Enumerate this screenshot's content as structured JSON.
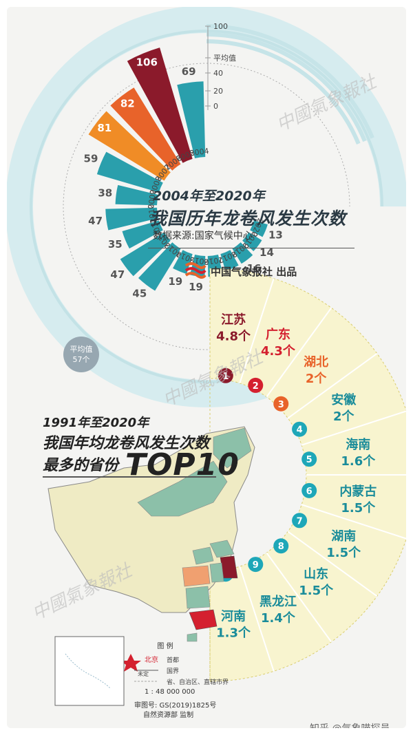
{
  "chart_data": [
    {
      "type": "bar",
      "title": "2004年至2020年 我国历年龙卷风发生次数",
      "subtitle": "数据来源:国家气候中心",
      "categories": [
        "2004",
        "2005",
        "2006",
        "2007",
        "2008",
        "2009",
        "2010",
        "2011",
        "2012",
        "2013",
        "2014",
        "2015",
        "2016",
        "2017",
        "2018",
        "2019",
        "2020"
      ],
      "values": [
        69,
        106,
        82,
        81,
        59,
        38,
        47,
        35,
        47,
        45,
        19,
        19,
        19,
        16,
        16,
        14,
        13
      ],
      "highlight_colors": {
        "2005": "#8b1a2b",
        "2006": "#e8632a",
        "2007": "#f08c26"
      },
      "scale_ticks": [
        "0",
        "20",
        "40",
        "平均值",
        "100"
      ],
      "average_label": "平均值",
      "average_value": "57个"
    },
    {
      "type": "table",
      "title": "1991年至2020年 我国年均龙卷风发生次数最多的省份TOP10",
      "rows": [
        {
          "rank": "1",
          "province": "江苏",
          "value": 4.8,
          "unit": "个",
          "color": "#8b1a2b"
        },
        {
          "rank": "2",
          "province": "广东",
          "value": 4.3,
          "unit": "个",
          "color": "#d4202f"
        },
        {
          "rank": "3",
          "province": "湖北",
          "value": 2,
          "unit": "个",
          "color": "#e8632a"
        },
        {
          "rank": "4",
          "province": "安徽",
          "value": 2,
          "unit": "个",
          "color": "#1ea7b8"
        },
        {
          "rank": "5",
          "province": "海南",
          "value": 1.6,
          "unit": "个",
          "color": "#1ea7b8"
        },
        {
          "rank": "6",
          "province": "内蒙古",
          "value": 1.5,
          "unit": "个",
          "color": "#1ea7b8"
        },
        {
          "rank": "7",
          "province": "湖南",
          "value": 1.5,
          "unit": "个",
          "color": "#1ea7b8"
        },
        {
          "rank": "8",
          "province": "山东",
          "value": 1.5,
          "unit": "个",
          "color": "#1ea7b8"
        },
        {
          "rank": "9",
          "province": "黑龙江",
          "value": 1.4,
          "unit": "个",
          "color": "#1ea7b8"
        },
        {
          "rank": "10",
          "province": "河南",
          "value": 1.3,
          "unit": "个",
          "color": "#1ea7b8"
        }
      ]
    }
  ],
  "header": {
    "line1": "2004年至2020年",
    "line2": "我国历年龙卷风发生次数",
    "source": "数据来源:国家气候中心",
    "brand": "中国气象报社 出品"
  },
  "map_section": {
    "line1": "1991年至2020年",
    "line2": "我国年均龙卷风发生次数",
    "line3": "最多的省份",
    "line4": "TOP10"
  },
  "map_legend": {
    "title": "图 例",
    "capital": "北京",
    "capital_desc": "首都",
    "line_a": "未定",
    "line_b": "国界",
    "line_c": "省、自治区、直辖市界",
    "scale": "1 : 48 000 000",
    "approval": "审图号: GS(2019)1825号",
    "issuer": "自然资源部 监制"
  },
  "watermark": "中國氣象報社",
  "credit": "知乎 @气象喵探员",
  "colors": {
    "teal": "#2a9fac",
    "teal_light": "#d6ecef",
    "maroon": "#8b1a2b",
    "orange": "#e8632a",
    "amber": "#f08c26",
    "yellow_bg": "#f8f4cf",
    "map_base": "#efebc4",
    "map_green": "#8cc0a9"
  }
}
